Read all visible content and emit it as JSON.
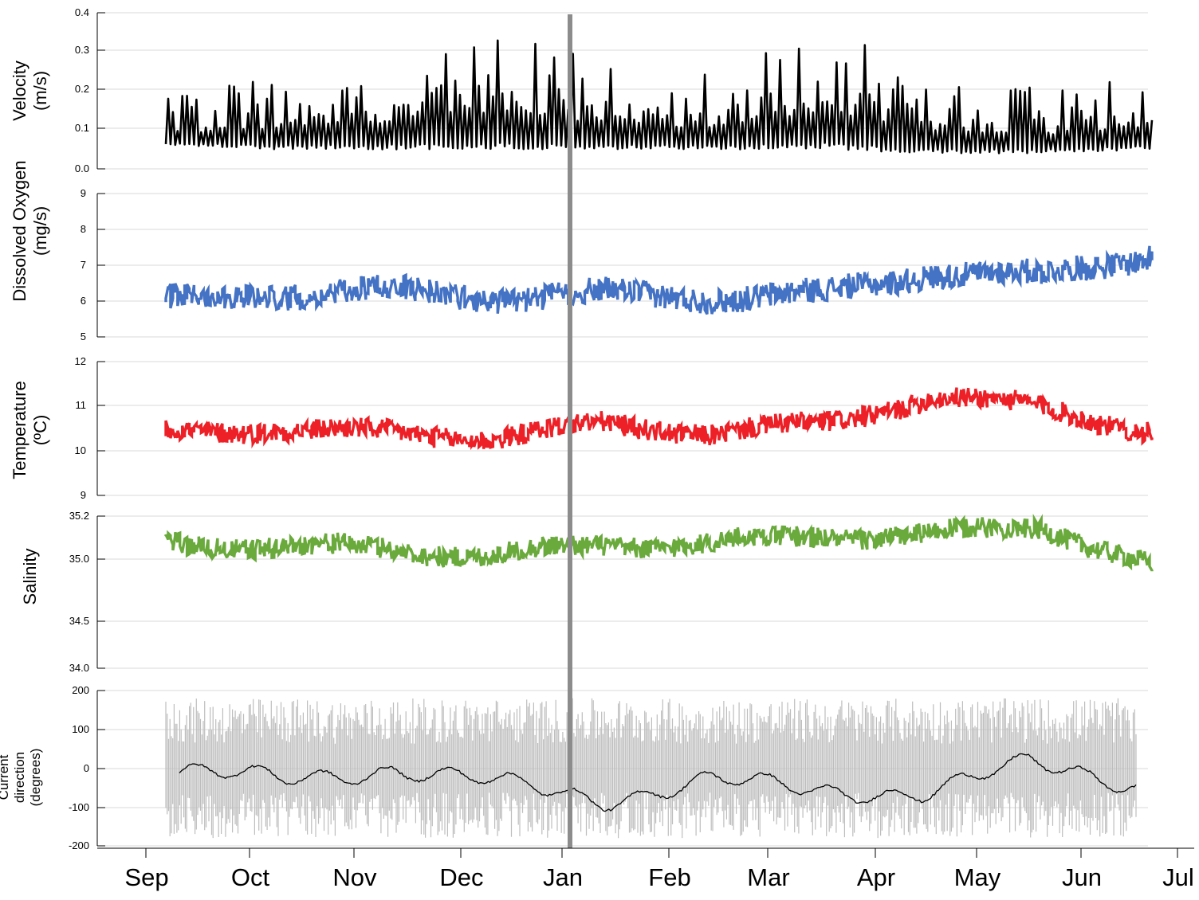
{
  "x_axis": {
    "labels": [
      "Sep",
      "Oct",
      "Nov",
      "Dec",
      "Jan",
      "Feb",
      "Mar",
      "Apr",
      "May",
      "Jun",
      "Jul"
    ]
  },
  "marker": {
    "at": "Jan",
    "color": "#8c8c8c"
  },
  "chart_data": [
    {
      "type": "line",
      "ylabel_lines": [
        "Velocity",
        "(m/s)"
      ],
      "yticks": [
        "0.4",
        "0.3",
        "0.2",
        "0.1",
        "0.0"
      ],
      "ylim": [
        0.0,
        0.4
      ],
      "color": "#000000",
      "series": [
        {
          "x": [
            "Sep",
            "Oct",
            "Nov",
            "Dec",
            "Jan",
            "Feb",
            "Mar",
            "Apr",
            "May",
            "Jun"
          ],
          "low": [
            0.04,
            0.03,
            0.03,
            0.03,
            0.03,
            0.03,
            0.03,
            0.02,
            0.02,
            0.03
          ],
          "high": [
            0.18,
            0.24,
            0.28,
            0.36,
            0.27,
            0.24,
            0.37,
            0.24,
            0.21,
            0.25
          ]
        }
      ]
    },
    {
      "type": "line",
      "ylabel_lines": [
        "Dissolved Oxygen",
        "(mg/s)"
      ],
      "yticks": [
        "9",
        "8",
        "7",
        "6",
        "5"
      ],
      "ylim": [
        5,
        9
      ],
      "color": "#4472c4",
      "series": [
        {
          "x": [
            "Sep",
            "Oct",
            "Nov",
            "Dec",
            "Jan",
            "Feb",
            "Mar",
            "Apr",
            "May",
            "Jun"
          ],
          "mean": [
            6.0,
            6.2,
            6.3,
            6.1,
            6.2,
            6.1,
            6.2,
            6.8,
            6.7,
            7.3
          ]
        }
      ]
    },
    {
      "type": "line",
      "ylabel_lines": [
        "Temperature",
        "(ºC)"
      ],
      "yticks": [
        "12",
        "11",
        "10",
        "9"
      ],
      "ylim": [
        9,
        12
      ],
      "color": "#ee2027",
      "series": [
        {
          "x": [
            "Sep",
            "Oct",
            "Nov",
            "Dec",
            "Jan",
            "Feb",
            "Mar",
            "Apr",
            "May",
            "Jun"
          ],
          "mean": [
            10.4,
            10.5,
            10.4,
            10.3,
            10.6,
            10.4,
            10.6,
            11.2,
            11.0,
            10.4
          ]
        }
      ]
    },
    {
      "type": "line",
      "ylabel_lines": [
        "Salinity"
      ],
      "yticks": [
        "35.2",
        "35.0",
        "34.5",
        "34.0"
      ],
      "ylim": [
        34.0,
        35.2
      ],
      "color": "#6aaa3c",
      "series": [
        {
          "x": [
            "Sep",
            "Oct",
            "Nov",
            "Dec",
            "Jan",
            "Feb",
            "Mar",
            "Apr",
            "May",
            "Jun"
          ],
          "mean": [
            35.0,
            34.95,
            34.95,
            34.88,
            34.98,
            34.98,
            35.05,
            35.05,
            35.12,
            34.8
          ]
        }
      ]
    },
    {
      "type": "line",
      "ylabel_lines": [
        "Current",
        "direction",
        "(degrees)"
      ],
      "yticks": [
        "200",
        "100",
        "0",
        "-100",
        "-200"
      ],
      "ylim": [
        -200,
        200
      ],
      "colors": {
        "raw": "#bdbdbd",
        "smoothed": "#000000"
      },
      "series": [
        {
          "x": [
            "Sep",
            "Oct",
            "Nov",
            "Dec",
            "Jan",
            "Feb",
            "Mar",
            "Apr",
            "May",
            "Jun"
          ],
          "low": [
            -180,
            -180,
            -180,
            -180,
            -180,
            -180,
            -180,
            -180,
            -180,
            -180
          ],
          "high": [
            180,
            180,
            180,
            180,
            180,
            180,
            180,
            180,
            180,
            180
          ]
        },
        {
          "x": [
            "Sep",
            "Oct",
            "Nov",
            "Dec",
            "Jan",
            "Feb",
            "Mar",
            "Apr",
            "May",
            "Jun"
          ],
          "values": [
            -10,
            -30,
            0,
            -40,
            -80,
            -30,
            -60,
            -60,
            10,
            -40
          ]
        }
      ]
    }
  ]
}
